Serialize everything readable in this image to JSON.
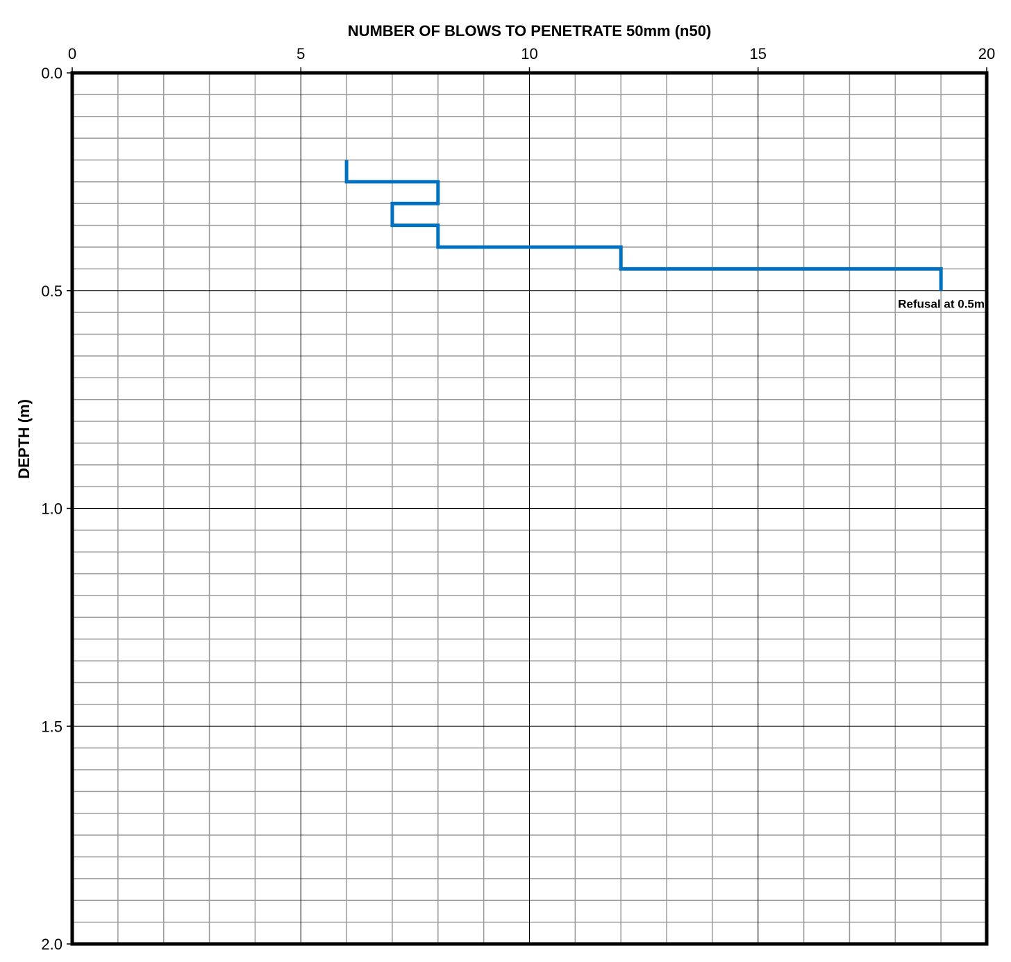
{
  "chart_data": {
    "type": "line",
    "title": "",
    "xlabel": "NUMBER OF BLOWS TO PENETRATE 50mm (n50)",
    "ylabel": "DEPTH (m)",
    "xlim": [
      0,
      20
    ],
    "ylim": [
      0.0,
      2.0
    ],
    "y_inverted": true,
    "x_axis_position": "top",
    "x_ticks": [
      0,
      5,
      10,
      15,
      20
    ],
    "x_tick_labels": [
      "0",
      "5",
      "10",
      "15",
      "20"
    ],
    "y_ticks": [
      0.0,
      0.5,
      1.0,
      1.5,
      2.0
    ],
    "y_tick_labels": [
      "0.0",
      "0.5",
      "1.0",
      "1.5",
      "2.0"
    ],
    "x_minor_step": 1,
    "y_minor_step": 0.05,
    "grid": true,
    "series": [
      {
        "color": "#0070c0",
        "step": "vertical",
        "intervals": [
          {
            "depth_from": 0.2,
            "depth_to": 0.25,
            "blows": 6
          },
          {
            "depth_from": 0.25,
            "depth_to": 0.3,
            "blows": 8
          },
          {
            "depth_from": 0.3,
            "depth_to": 0.35,
            "blows": 7
          },
          {
            "depth_from": 0.35,
            "depth_to": 0.4,
            "blows": 8
          },
          {
            "depth_from": 0.4,
            "depth_to": 0.45,
            "blows": 12
          },
          {
            "depth_from": 0.45,
            "depth_to": 0.5,
            "blows": 19
          }
        ]
      }
    ],
    "annotations": [
      {
        "text": "Refusal at 0.5m",
        "x": 20,
        "y": 0.53
      }
    ]
  }
}
